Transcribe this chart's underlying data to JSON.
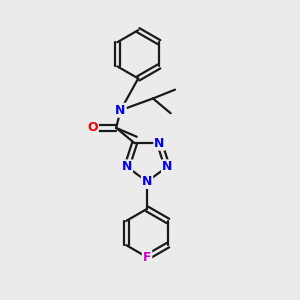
{
  "background_color": "#ebebeb",
  "bond_color": "#1a1a1a",
  "N_color": "#0000ee",
  "O_color": "#ee0000",
  "F_color": "#cc00cc",
  "line_width": 1.6,
  "fig_size": [
    3.0,
    3.0
  ],
  "dpi": 100,
  "xlim": [
    0,
    10
  ],
  "ylim": [
    0,
    10
  ]
}
